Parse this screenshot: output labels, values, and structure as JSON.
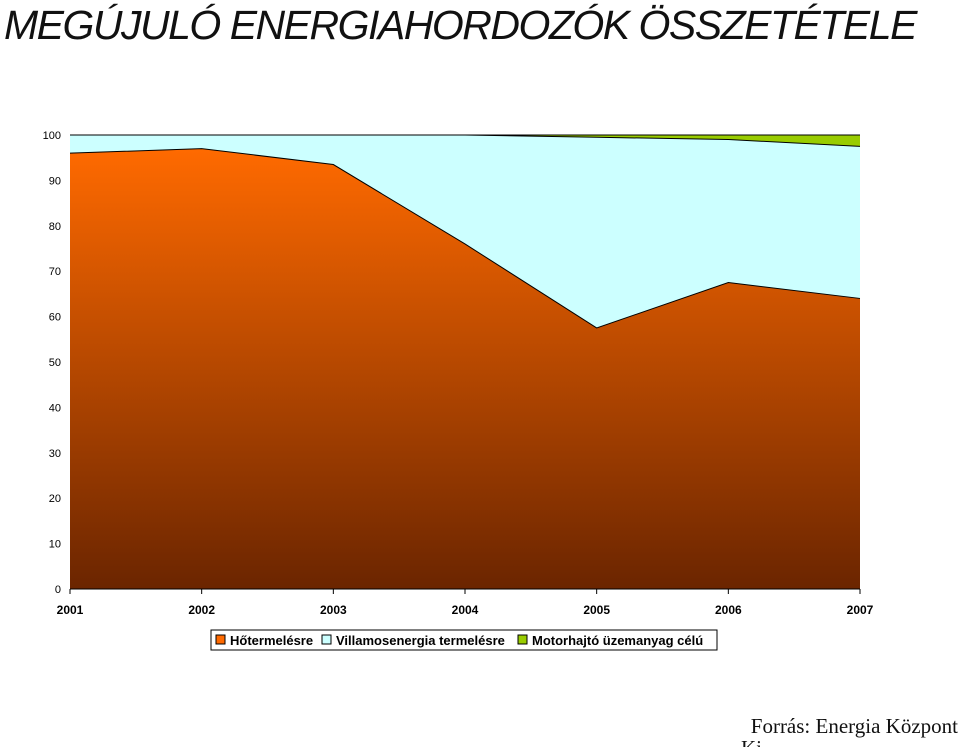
{
  "page": {
    "title": "MEGÚJULÓ ENERGIAHORDOZÓK ÖSSZETÉTELE",
    "source": "Forrás: Energia Központ"
  },
  "colors": {
    "axis": "#000000",
    "hotermeles_top": "#ff6a00",
    "hotermeles_bottom": "#6b2500",
    "villamos": "#ccffff",
    "motorhajto": "#99cc00"
  },
  "chart_data": {
    "type": "area",
    "stacked": true,
    "title": "",
    "xlabel": "",
    "ylabel": "",
    "categories": [
      "2001",
      "2002",
      "2003",
      "2004",
      "2005",
      "2006",
      "2007"
    ],
    "ylim": [
      0,
      100
    ],
    "yticks": [
      0,
      10,
      20,
      30,
      40,
      50,
      60,
      70,
      80,
      90,
      100
    ],
    "grid": false,
    "legend_position": "bottom",
    "series": [
      {
        "name": "Hőtermelésre",
        "values": [
          96.0,
          97.0,
          93.5,
          76.0,
          57.5,
          67.5,
          64.0
        ],
        "color_key": "hotermeles_top"
      },
      {
        "name": "Villamosenergia termelésre",
        "values": [
          4.0,
          3.0,
          6.5,
          24.0,
          42.0,
          31.5,
          33.5
        ],
        "color_key": "villamos"
      },
      {
        "name": "Motorhajtó üzemanyag célú",
        "values": [
          0.0,
          0.0,
          0.0,
          0.0,
          0.5,
          1.0,
          2.5
        ],
        "color_key": "motorhajto"
      }
    ]
  }
}
